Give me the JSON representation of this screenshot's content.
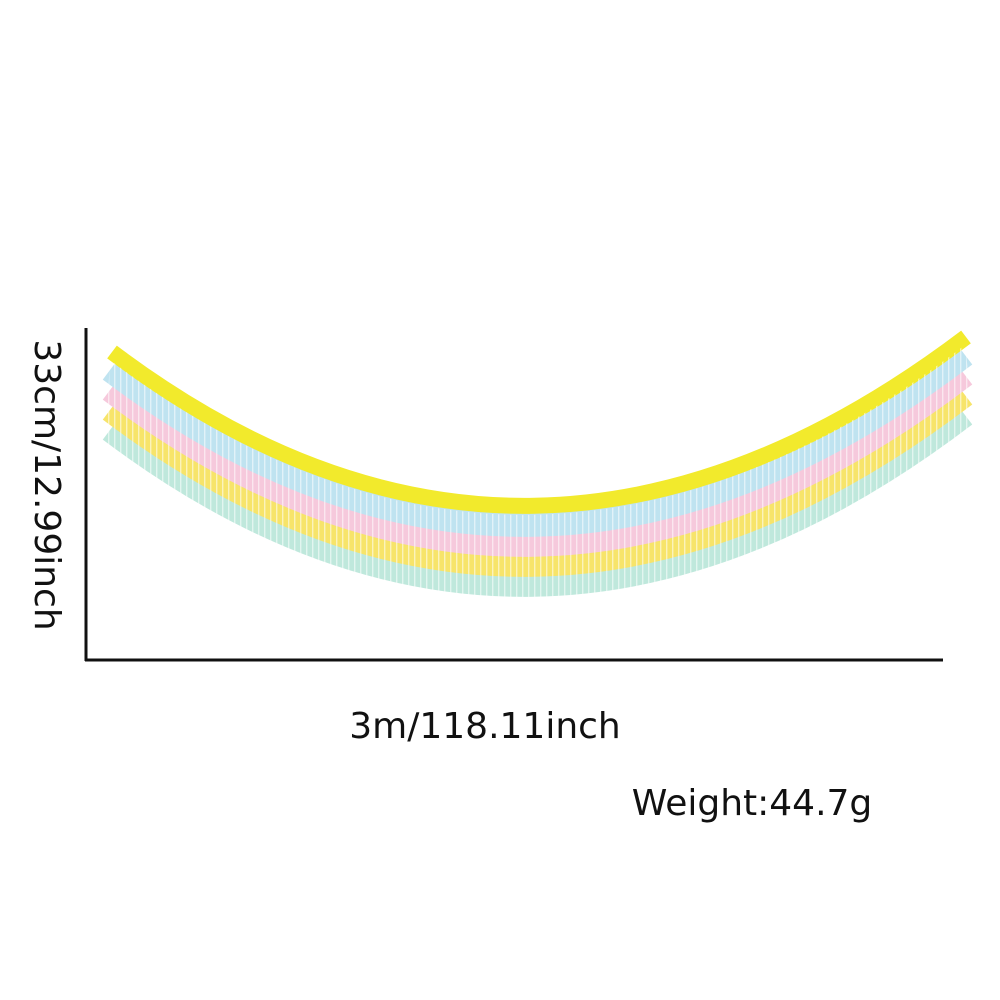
{
  "product": {
    "height_label": "33cm/12.99inch",
    "width_label": "3m/118.11inch",
    "weight_label": "Weight:44.7g"
  }
}
